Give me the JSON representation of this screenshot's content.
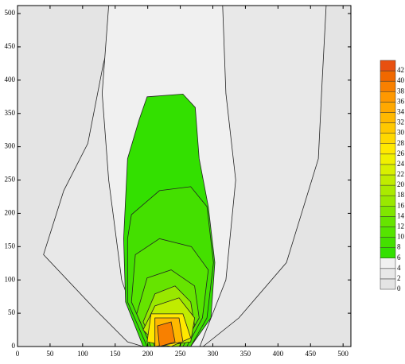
{
  "chart_data": {
    "type": "contour",
    "xlim": [
      0,
      512
    ],
    "ylim": [
      0,
      512
    ],
    "xticks": [
      0,
      50,
      100,
      150,
      200,
      250,
      300,
      350,
      400,
      450,
      500
    ],
    "yticks": [
      0,
      50,
      100,
      150,
      200,
      250,
      300,
      350,
      400,
      450,
      500
    ],
    "background": "#e4e4e4",
    "colorbar": {
      "clim": [
        0,
        44
      ],
      "levels": [
        0,
        2,
        4,
        6,
        8,
        10,
        12,
        14,
        16,
        18,
        20,
        22,
        24,
        26,
        28,
        30,
        32,
        34,
        36,
        38,
        40,
        42
      ],
      "colors": [
        "#e4e4e4",
        "#e8e8e8",
        "#f0f0f0",
        "#33e000",
        "#44e000",
        "#55e400",
        "#66e400",
        "#80e600",
        "#99e800",
        "#aaea00",
        "#c0ec00",
        "#d8f000",
        "#f0f000",
        "#ffe800",
        "#ffd800",
        "#ffc800",
        "#ffb800",
        "#ffa800",
        "#ff9800",
        "#f88000",
        "#f06800",
        "#e85010"
      ]
    },
    "contours": [
      {
        "level": 2,
        "points": [
          [
            156,
            512
          ],
          [
            132,
            425
          ],
          [
            108,
            305
          ],
          [
            71,
            234
          ],
          [
            40,
            138
          ],
          [
            120,
            55
          ],
          [
            169,
            7
          ],
          [
            193,
            0
          ],
          [
            285,
            0
          ],
          [
            340,
            43
          ],
          [
            413,
            126
          ],
          [
            462,
            282
          ],
          [
            468,
            401
          ],
          [
            474,
            512
          ]
        ]
      },
      {
        "level": 4,
        "points": [
          [
            140,
            512
          ],
          [
            130,
            380
          ],
          [
            140,
            250
          ],
          [
            160,
            100
          ],
          [
            195,
            0
          ],
          [
            280,
            0
          ],
          [
            320,
            100
          ],
          [
            335,
            250
          ],
          [
            320,
            380
          ],
          [
            315,
            512
          ]
        ]
      },
      {
        "level": 6,
        "points": [
          [
            199,
            375
          ],
          [
            254,
            379
          ],
          [
            273,
            359
          ],
          [
            279,
            282
          ],
          [
            293,
            210
          ],
          [
            303,
            126
          ],
          [
            297,
            43
          ],
          [
            266,
            0
          ],
          [
            193,
            0
          ],
          [
            166,
            67
          ],
          [
            163,
            162
          ],
          [
            169,
            282
          ],
          [
            187,
            341
          ]
        ]
      },
      {
        "level": 8,
        "points": [
          [
            175,
            198
          ],
          [
            218,
            234
          ],
          [
            266,
            240
          ],
          [
            291,
            210
          ],
          [
            301,
            126
          ],
          [
            291,
            43
          ],
          [
            266,
            0
          ],
          [
            199,
            0
          ],
          [
            169,
            67
          ],
          [
            169,
            162
          ]
        ]
      },
      {
        "level": 10,
        "points": [
          [
            181,
            138
          ],
          [
            218,
            162
          ],
          [
            267,
            150
          ],
          [
            293,
            115
          ],
          [
            284,
            43
          ],
          [
            260,
            0
          ],
          [
            205,
            0
          ],
          [
            175,
            67
          ]
        ]
      },
      {
        "level": 12,
        "points": [
          [
            199,
            103
          ],
          [
            236,
            115
          ],
          [
            272,
            91
          ],
          [
            279,
            43
          ],
          [
            254,
            0
          ],
          [
            205,
            0
          ],
          [
            183,
            49
          ]
        ]
      },
      {
        "level": 16,
        "points": [
          [
            211,
            79
          ],
          [
            242,
            91
          ],
          [
            266,
            67
          ],
          [
            272,
            31
          ],
          [
            248,
            0
          ],
          [
            211,
            0
          ],
          [
            193,
            37
          ]
        ]
      },
      {
        "level": 20,
        "points": [
          [
            211,
            61
          ],
          [
            248,
            73
          ],
          [
            272,
            43
          ],
          [
            266,
            7
          ],
          [
            218,
            0
          ],
          [
            193,
            25
          ]
        ]
      },
      {
        "level": 26,
        "points": [
          [
            205,
            49
          ],
          [
            254,
            49
          ],
          [
            266,
            13
          ],
          [
            236,
            0
          ],
          [
            199,
            7
          ]
        ]
      },
      {
        "level": 32,
        "points": [
          [
            211,
            43
          ],
          [
            248,
            43
          ],
          [
            254,
            7
          ],
          [
            211,
            0
          ]
        ]
      },
      {
        "level": 38,
        "points": [
          [
            215,
            31
          ],
          [
            236,
            37
          ],
          [
            242,
            7
          ],
          [
            218,
            0
          ]
        ]
      }
    ]
  }
}
